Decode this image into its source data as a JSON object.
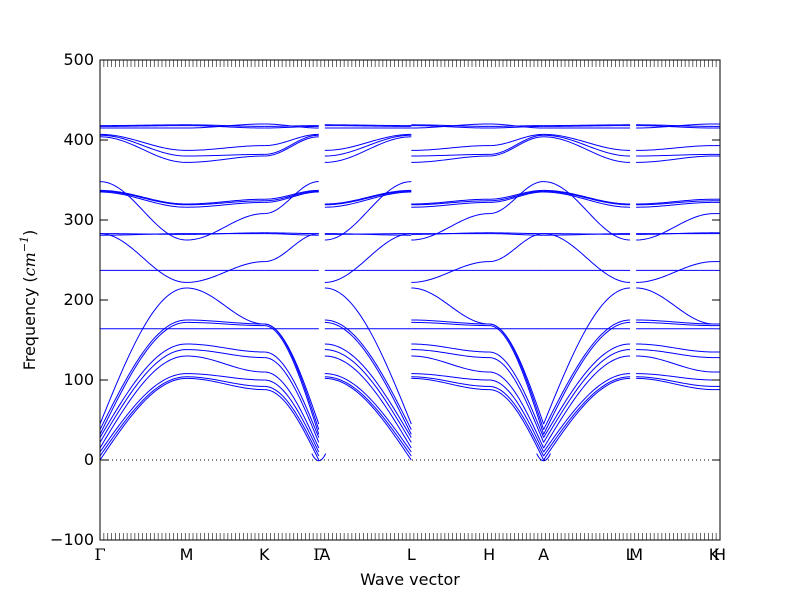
{
  "chart_data": {
    "type": "line",
    "xlabel": "Wave vector",
    "ylabel": "Frequency",
    "ylabel_unit": "cm",
    "ylabel_unit_exp": "−1",
    "ylim": [
      -100,
      500
    ],
    "yticks": [
      -100,
      0,
      100,
      200,
      300,
      400,
      500
    ],
    "ytick_labels": [
      "−100",
      "0",
      "100",
      "200",
      "300",
      "400",
      "500"
    ],
    "high_symmetry_points": [
      {
        "label": "Γ",
        "x": 0.0
      },
      {
        "label": "M",
        "x": 1.0
      },
      {
        "label": "K",
        "x": 1.9
      },
      {
        "label": "Γ",
        "x": 2.53
      },
      {
        "label": "A",
        "x": 2.6
      },
      {
        "label": "L",
        "x": 3.6
      },
      {
        "label": "H",
        "x": 4.5
      },
      {
        "label": "A",
        "x": 5.13
      },
      {
        "label": "L",
        "x": 6.13
      },
      {
        "label": "M",
        "x": 6.2
      },
      {
        "label": "K",
        "x": 7.1
      },
      {
        "label": "H",
        "x": 7.17
      }
    ],
    "zero_line": true,
    "line_color": "#0000ff",
    "segments": [
      {
        "name": "Γ-M",
        "x0": 0.0,
        "x1": 1.0,
        "mirror": false
      },
      {
        "name": "M-K",
        "x0": 1.0,
        "x1": 1.9,
        "mirror": false
      },
      {
        "name": "K-Γ",
        "x0": 1.9,
        "x1": 2.53,
        "mirror": false
      },
      {
        "name": "A-L",
        "x0": 2.6,
        "x1": 3.6,
        "mirror": false
      },
      {
        "name": "L-H",
        "x0": 3.6,
        "x1": 4.5,
        "mirror": false
      },
      {
        "name": "H-A",
        "x0": 4.5,
        "x1": 5.13,
        "mirror": false
      },
      {
        "name": "L-M",
        "x0": 6.13,
        "x1": 6.2,
        "mirror": false
      },
      {
        "name": "M-K",
        "x0": 6.2,
        "x1": 7.1,
        "mirror": false
      },
      {
        "name": "K-H",
        "x0": 7.1,
        "x1": 7.17,
        "mirror": false
      }
    ],
    "bands": [
      {
        "name": "band-1",
        "GM": [
          0,
          102
        ],
        "MK": [
          102,
          88
        ],
        "KG": [
          88,
          0
        ]
      },
      {
        "name": "band-2",
        "GM": [
          5,
          104
        ],
        "MK": [
          104,
          92
        ],
        "KG": [
          92,
          5
        ]
      },
      {
        "name": "band-3",
        "GM": [
          10,
          108
        ],
        "MK": [
          108,
          100
        ],
        "KG": [
          100,
          10
        ]
      },
      {
        "name": "band-4",
        "GM": [
          15,
          130
        ],
        "MK": [
          130,
          110
        ],
        "KG": [
          110,
          15
        ]
      },
      {
        "name": "band-5",
        "GM": [
          22,
          138
        ],
        "MK": [
          138,
          128
        ],
        "KG": [
          128,
          22
        ]
      },
      {
        "name": "band-6",
        "GM": [
          28,
          145
        ],
        "MK": [
          145,
          135
        ],
        "KG": [
          135,
          28
        ]
      },
      {
        "name": "band-7",
        "GM": [
          32,
          172
        ],
        "MK": [
          172,
          168
        ],
        "KG": [
          168,
          32
        ]
      },
      {
        "name": "band-8",
        "GM": [
          38,
          175
        ],
        "MK": [
          175,
          170
        ],
        "KG": [
          170,
          38
        ]
      },
      {
        "name": "band-9",
        "GM": [
          45,
          215
        ],
        "MK": [
          215,
          170
        ],
        "KG": [
          170,
          45
        ]
      },
      {
        "name": "band-10",
        "GM": [
          164,
          164
        ],
        "MK": [
          164,
          164
        ],
        "KG": [
          164,
          164
        ]
      },
      {
        "name": "band-11",
        "GM": [
          237,
          237
        ],
        "MK": [
          237,
          237
        ],
        "KG": [
          237,
          237
        ]
      },
      {
        "name": "band-12",
        "GM": [
          283,
          222
        ],
        "MK": [
          222,
          248
        ],
        "KG": [
          248,
          283
        ]
      },
      {
        "name": "band-13",
        "GM": [
          281,
          283
        ],
        "MK": [
          283,
          283
        ],
        "KG": [
          283,
          281
        ]
      },
      {
        "name": "band-14",
        "GM": [
          283,
          282
        ],
        "MK": [
          282,
          284
        ],
        "KG": [
          284,
          283
        ]
      },
      {
        "name": "band-15",
        "GM": [
          348,
          275
        ],
        "MK": [
          275,
          308
        ],
        "KG": [
          308,
          348
        ]
      },
      {
        "name": "band-16",
        "GM": [
          335,
          316
        ],
        "MK": [
          316,
          322
        ],
        "KG": [
          322,
          335
        ]
      },
      {
        "name": "band-17",
        "GM": [
          336,
          319
        ],
        "MK": [
          319,
          324
        ],
        "KG": [
          324,
          336
        ]
      },
      {
        "name": "band-18",
        "GM": [
          337,
          320
        ],
        "MK": [
          320,
          326
        ],
        "KG": [
          326,
          337
        ]
      },
      {
        "name": "band-19",
        "GM": [
          404,
          372
        ],
        "MK": [
          372,
          380
        ],
        "KG": [
          380,
          404
        ]
      },
      {
        "name": "band-20",
        "GM": [
          406,
          380
        ],
        "MK": [
          380,
          382
        ],
        "KG": [
          382,
          406
        ]
      },
      {
        "name": "band-21",
        "GM": [
          407,
          387
        ],
        "MK": [
          387,
          393
        ],
        "KG": [
          393,
          407
        ]
      },
      {
        "name": "band-22",
        "GM": [
          415,
          415
        ],
        "MK": [
          415,
          420
        ],
        "KG": [
          420,
          415
        ]
      },
      {
        "name": "band-23",
        "GM": [
          417,
          418
        ],
        "MK": [
          418,
          415
        ],
        "KG": [
          415,
          417
        ]
      },
      {
        "name": "band-24",
        "GM": [
          418,
          419
        ],
        "MK": [
          419,
          417
        ],
        "KG": [
          417,
          418
        ]
      }
    ],
    "anomaly": {
      "name": "imaginary-dip",
      "min": -5
    }
  }
}
